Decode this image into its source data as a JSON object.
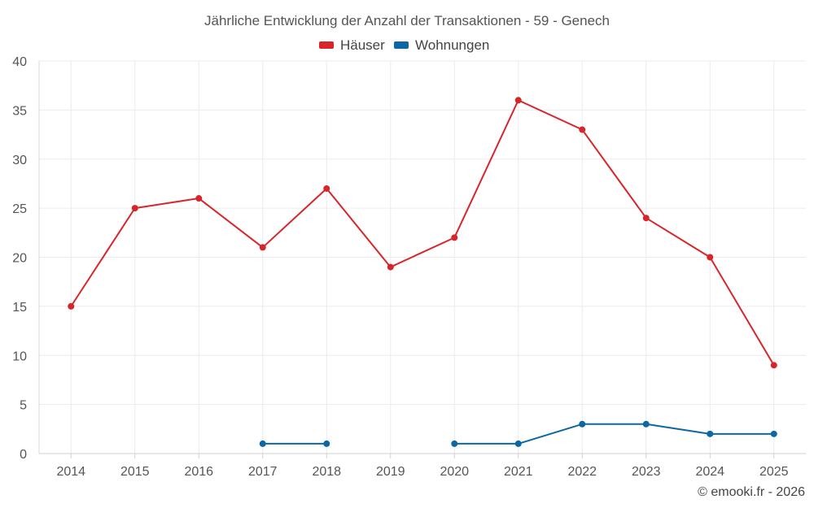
{
  "chart_data": {
    "type": "line",
    "title": "Jährliche Entwicklung der Anzahl der Transaktionen - 59 - Genech",
    "categories": [
      "2014",
      "2015",
      "2016",
      "2017",
      "2018",
      "2019",
      "2020",
      "2021",
      "2022",
      "2023",
      "2024",
      "2025"
    ],
    "ylim": [
      0,
      40
    ],
    "yticks": [
      0,
      5,
      10,
      15,
      20,
      25,
      30,
      35,
      40
    ],
    "grid": true,
    "legend_position": "top-center",
    "series": [
      {
        "name": "Häuser",
        "color": "#d7262b",
        "values": [
          15,
          25,
          26,
          21,
          27,
          19,
          22,
          36,
          33,
          24,
          20,
          9
        ]
      },
      {
        "name": "Wohnungen",
        "color": "#0c67a3",
        "values": [
          null,
          null,
          null,
          1,
          1,
          null,
          1,
          1,
          3,
          3,
          2,
          2
        ]
      }
    ]
  },
  "credit": "© emooki.fr - 2026"
}
